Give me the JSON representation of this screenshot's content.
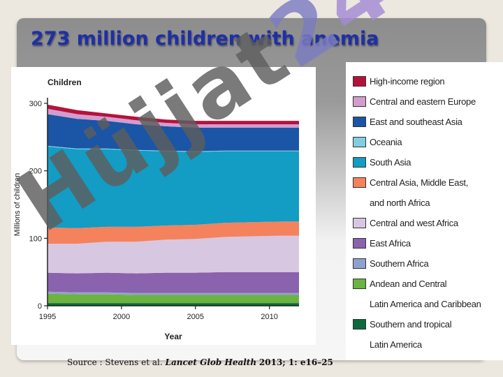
{
  "slide": {
    "title": "273 million children with anemia",
    "watermark": "Hüjjat24",
    "watermark_colors": [
      "#5e5e5e",
      "#5e5e5e",
      "#5e5e5e",
      "#5e5e5e",
      "#5e5e5e",
      "#5e5e5e",
      "#7c7cc2",
      "#a48bd6"
    ],
    "source": {
      "prefix": "Source : Stevens et al.",
      "journal": "Lancet Glob Health",
      "citation": "2013; 1: e16–25"
    }
  },
  "chart_data": {
    "type": "area",
    "title": "Children",
    "xlabel": "Year",
    "ylabel": "Millions of children",
    "x": [
      1995,
      1997,
      1999,
      2001,
      2003,
      2005,
      2007,
      2009,
      2011,
      2012
    ],
    "xlim": [
      1995,
      2012
    ],
    "ylim": [
      0,
      300
    ],
    "xticks": [
      "1995",
      "2000",
      "2005",
      "2010"
    ],
    "yticks": [
      "0",
      "100",
      "200",
      "300"
    ],
    "stacked": true,
    "series": [
      {
        "name": "Southern and tropical Latin America",
        "color": "#0b6b3a",
        "values": [
          4,
          4,
          4,
          4,
          4,
          4,
          4,
          4,
          4,
          4
        ]
      },
      {
        "name": "Andean and Central Latin America and Caribbean",
        "color": "#6cb33f",
        "values": [
          14,
          13,
          13,
          12,
          12,
          12,
          12,
          12,
          12,
          12
        ]
      },
      {
        "name": "Southern Africa",
        "color": "#8fa2cf",
        "values": [
          3,
          3,
          3,
          3,
          3,
          3,
          3,
          3,
          3,
          3
        ]
      },
      {
        "name": "East Africa",
        "color": "#8a62ad",
        "values": [
          28,
          28,
          29,
          29,
          30,
          30,
          31,
          31,
          31,
          31
        ]
      },
      {
        "name": "Central and west Africa",
        "color": "#d8c7e0",
        "values": [
          43,
          44,
          46,
          47,
          49,
          50,
          52,
          53,
          54,
          54
        ]
      },
      {
        "name": "Central Asia, Middle East, and north Africa",
        "color": "#f4825d",
        "values": [
          24,
          23,
          22,
          22,
          21,
          21,
          21,
          21,
          21,
          21
        ]
      },
      {
        "name": "South Asia",
        "color": "#139cc4",
        "values": [
          120,
          117,
          115,
          113,
          110,
          108,
          106,
          105,
          104,
          104
        ]
      },
      {
        "name": "Oceania",
        "color": "#7fcfe0",
        "values": [
          1,
          1,
          1,
          1,
          1,
          1,
          1,
          1,
          1,
          1
        ]
      },
      {
        "name": "East and southeast Asia",
        "color": "#1a55a6",
        "values": [
          47,
          44,
          41,
          38,
          36,
          35,
          34,
          34,
          34,
          34
        ]
      },
      {
        "name": "Central and eastern Europe",
        "color": "#d49ccd",
        "values": [
          8,
          7,
          6,
          6,
          5,
          5,
          5,
          5,
          5,
          5
        ]
      },
      {
        "name": "High-income region",
        "color": "#b5123b",
        "values": [
          6,
          6,
          5,
          5,
          5,
          5,
          5,
          5,
          5,
          5
        ]
      }
    ]
  },
  "legend": [
    {
      "label": "High-income region",
      "color": "#b5123b"
    },
    {
      "label": "Central and eastern Europe",
      "color": "#d49ccd"
    },
    {
      "label": "East and southeast Asia",
      "color": "#1a55a6"
    },
    {
      "label": "Oceania",
      "color": "#7fcfe0"
    },
    {
      "label": "South Asia",
      "color": "#139cc4"
    },
    {
      "label": "Central Asia, Middle East,",
      "label2": "and north Africa",
      "color": "#f4825d"
    },
    {
      "label": "Central and west Africa",
      "color": "#d8c7e0"
    },
    {
      "label": "East Africa",
      "color": "#8a62ad"
    },
    {
      "label": "Southern Africa",
      "color": "#8fa2cf"
    },
    {
      "label": "Andean and Central",
      "label2": "Latin America and Caribbean",
      "color": "#6cb33f"
    },
    {
      "label": "Southern and tropical",
      "label2": "Latin America",
      "color": "#0b6b3a"
    }
  ]
}
